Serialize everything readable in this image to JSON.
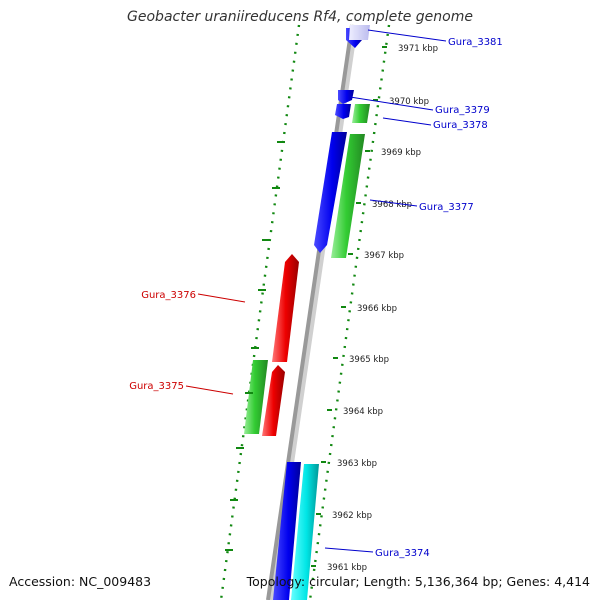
{
  "title": "Geobacter uraniireducens Rf4, complete genome",
  "footer": {
    "accession": "Accession: NC_009483",
    "topology": "Topology: circular; Length: 5,136,364 bp; Genes: 4,414"
  },
  "colors": {
    "backbone": "#999999",
    "dotted_guides": "#118811",
    "plus_strand_a": "#0000ff",
    "plus_strand_b": "#00e0e0",
    "minus_strand_a": "#33cc33",
    "minus_strand_b": "#ff0000",
    "label_blue": "#0000cc",
    "label_red": "#cc0000"
  },
  "ticks": [
    {
      "label": "3971 kbp"
    },
    {
      "label": "3970 kbp"
    },
    {
      "label": "3969 kbp"
    },
    {
      "label": "3968 kbp"
    },
    {
      "label": "3967 kbp"
    },
    {
      "label": "3966 kbp"
    },
    {
      "label": "3965 kbp"
    },
    {
      "label": "3964 kbp"
    },
    {
      "label": "3963 kbp"
    },
    {
      "label": "3962 kbp"
    },
    {
      "label": "3961 kbp"
    }
  ],
  "gene_labels": [
    {
      "name": "Gura_3381",
      "color": "blue"
    },
    {
      "name": "Gura_3379",
      "color": "blue"
    },
    {
      "name": "Gura_3378",
      "color": "blue"
    },
    {
      "name": "Gura_3377",
      "color": "blue"
    },
    {
      "name": "Gura_3376",
      "color": "red"
    },
    {
      "name": "Gura_3375",
      "color": "red"
    },
    {
      "name": "Gura_3374",
      "color": "blue"
    }
  ]
}
